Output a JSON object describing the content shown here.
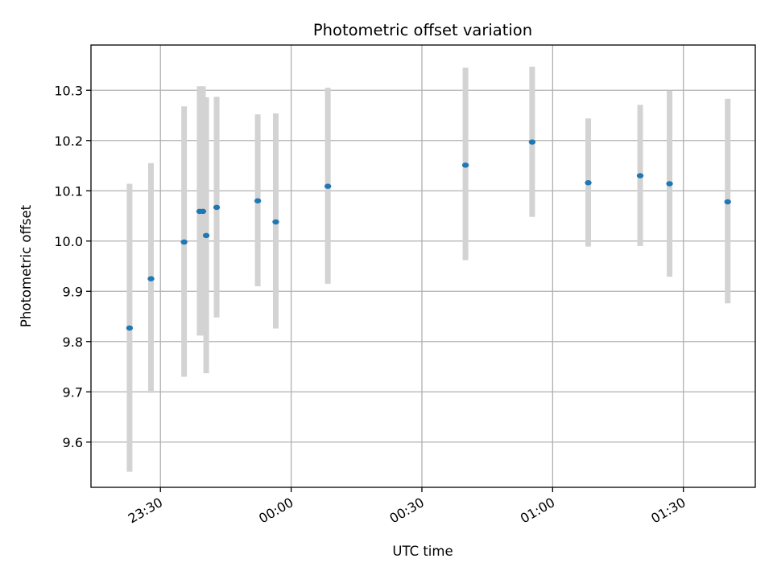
{
  "chart_data": {
    "type": "scatter",
    "title": "Photometric offset variation",
    "xlabel": "UTC time",
    "ylabel": "Photometric offset",
    "x_ticks": [
      "23:30",
      "00:00",
      "00:30",
      "01:00",
      "01:30"
    ],
    "y_ticks": [
      "9.6",
      "9.7",
      "9.8",
      "9.9",
      "10.0",
      "10.1",
      "10.2",
      "10.3"
    ],
    "ylim": [
      9.51,
      10.39
    ],
    "xlim": [
      "23:14:04",
      "01:46:30"
    ],
    "grid": true,
    "error_bar_color": "#d3d3d3",
    "marker_color": "#1f77b4",
    "points": [
      {
        "x": "23:22:55",
        "y": 9.827,
        "ylow": 9.541,
        "yhigh": 10.114
      },
      {
        "x": "23:27:50",
        "y": 9.925,
        "ylow": 9.698,
        "yhigh": 10.155
      },
      {
        "x": "23:35:26",
        "y": 9.998,
        "ylow": 9.73,
        "yhigh": 10.268
      },
      {
        "x": "23:39:00",
        "y": 10.059,
        "ylow": 9.812,
        "yhigh": 10.308
      },
      {
        "x": "23:39:45",
        "y": 10.059,
        "ylow": 9.812,
        "yhigh": 10.308
      },
      {
        "x": "23:40:30",
        "y": 10.011,
        "ylow": 9.737,
        "yhigh": 10.286
      },
      {
        "x": "23:42:54",
        "y": 10.067,
        "ylow": 9.848,
        "yhigh": 10.287
      },
      {
        "x": "23:52:20",
        "y": 10.08,
        "ylow": 9.91,
        "yhigh": 10.252
      },
      {
        "x": "23:56:28",
        "y": 10.038,
        "ylow": 9.826,
        "yhigh": 10.254
      },
      {
        "x": "00:08:25",
        "y": 10.109,
        "ylow": 9.915,
        "yhigh": 10.305
      },
      {
        "x": "00:40:00",
        "y": 10.151,
        "ylow": 9.962,
        "yhigh": 10.345
      },
      {
        "x": "00:55:18",
        "y": 10.197,
        "ylow": 10.048,
        "yhigh": 10.347
      },
      {
        "x": "01:08:10",
        "y": 10.116,
        "ylow": 9.989,
        "yhigh": 10.244
      },
      {
        "x": "01:20:05",
        "y": 10.13,
        "ylow": 9.99,
        "yhigh": 10.271
      },
      {
        "x": "01:26:50",
        "y": 10.114,
        "ylow": 9.929,
        "yhigh": 10.299
      },
      {
        "x": "01:40:10",
        "y": 10.078,
        "ylow": 9.876,
        "yhigh": 10.283
      }
    ]
  }
}
